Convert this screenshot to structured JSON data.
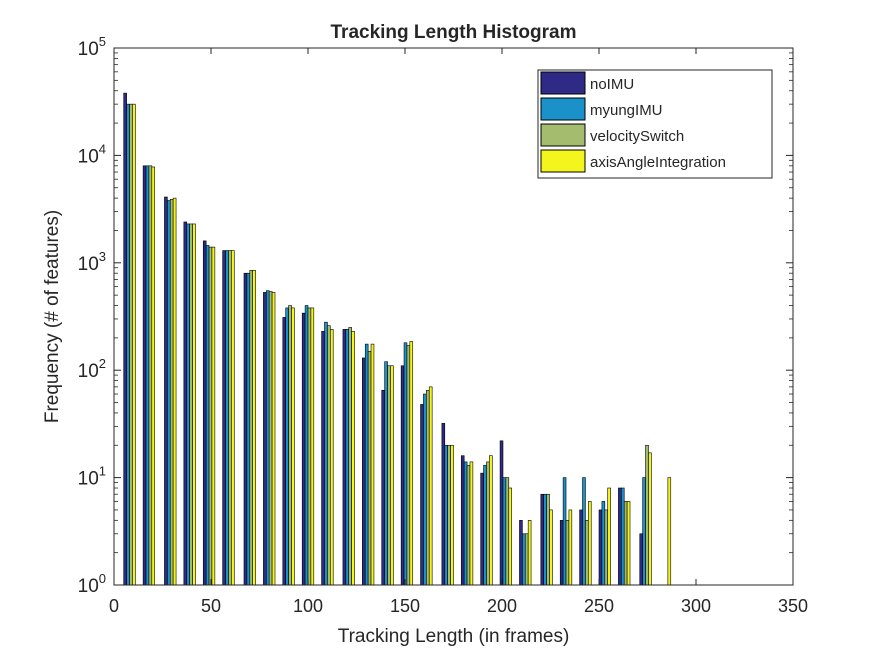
{
  "chart_data": {
    "type": "bar",
    "title": "Tracking Length Histogram",
    "xlabel": "Tracking Length (in frames)",
    "ylabel": "Frequency (# of features)",
    "xlim": [
      0,
      350
    ],
    "ylim": [
      1,
      100000
    ],
    "yscale": "log",
    "grid": false,
    "legend_position": "top-right",
    "x_ticks": [
      0,
      50,
      100,
      150,
      200,
      250,
      300,
      350
    ],
    "x_tick_labels": [
      "0",
      "50",
      "100",
      "150",
      "200",
      "250",
      "300",
      "350"
    ],
    "y_ticks": [
      1,
      10,
      100,
      1000,
      10000,
      100000
    ],
    "y_tick_labels": [
      {
        "base": "10",
        "exp": "0"
      },
      {
        "base": "10",
        "exp": "1"
      },
      {
        "base": "10",
        "exp": "2"
      },
      {
        "base": "10",
        "exp": "3"
      },
      {
        "base": "10",
        "exp": "4"
      },
      {
        "base": "10",
        "exp": "5"
      }
    ],
    "bin_centers": [
      8,
      18,
      29,
      39,
      49,
      59,
      70,
      80,
      90,
      100,
      110,
      121,
      131,
      141,
      151,
      161,
      172,
      182,
      192,
      202,
      212,
      223,
      233,
      243,
      253,
      263,
      274,
      284,
      294,
      304,
      314
    ],
    "series": [
      {
        "name": "noIMU",
        "color": "#2e2a85",
        "values": [
          38000,
          8000,
          4100,
          2400,
          1600,
          1300,
          800,
          530,
          310,
          340,
          230,
          240,
          130,
          65,
          110,
          48,
          32,
          16,
          11,
          22,
          4,
          7,
          4,
          5,
          5,
          8,
          3,
          1,
          1,
          1,
          1
        ]
      },
      {
        "name": "myungIMU",
        "color": "#1a92c9",
        "values": [
          30000,
          8000,
          3800,
          2300,
          1450,
          1300,
          800,
          550,
          380,
          400,
          280,
          240,
          175,
          120,
          180,
          60,
          20,
          14,
          13,
          10,
          3,
          7,
          10,
          10,
          6,
          8,
          10,
          1,
          1,
          1,
          1
        ]
      },
      {
        "name": "velocitySwitch",
        "color": "#a3bc6d",
        "values": [
          30000,
          8000,
          3900,
          2300,
          1400,
          1300,
          850,
          540,
          400,
          380,
          260,
          250,
          150,
          110,
          170,
          65,
          20,
          13,
          14,
          10,
          3,
          7,
          4,
          4,
          5,
          6,
          20,
          1,
          1,
          1,
          1
        ]
      },
      {
        "name": "axisAngleIntegration",
        "color": "#f5f51e",
        "values": [
          30000,
          7800,
          4000,
          2300,
          1400,
          1300,
          850,
          530,
          380,
          380,
          240,
          230,
          175,
          110,
          185,
          70,
          20,
          14,
          16,
          8,
          4,
          5,
          5,
          6,
          8,
          6,
          17,
          10,
          1,
          1,
          1
        ]
      }
    ]
  }
}
